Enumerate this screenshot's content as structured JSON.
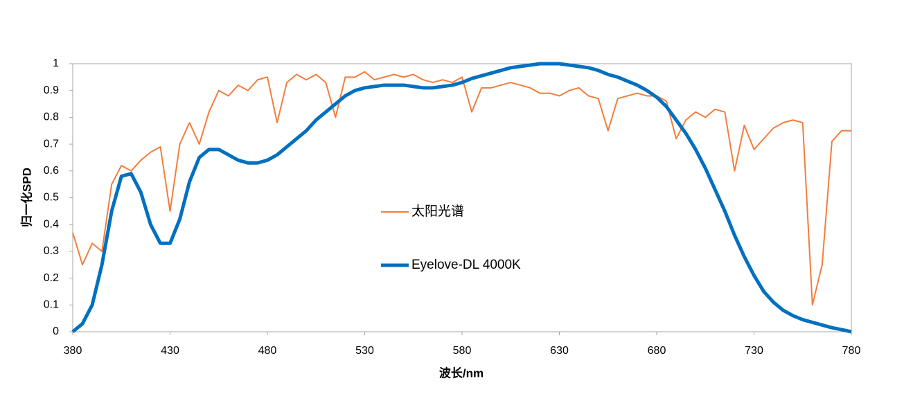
{
  "chart_data": {
    "type": "line",
    "x_label": "波长/nm",
    "y_label": "归一化SPD",
    "x": [
      380,
      385,
      390,
      395,
      400,
      405,
      410,
      415,
      420,
      425,
      430,
      435,
      440,
      445,
      450,
      455,
      460,
      465,
      470,
      475,
      480,
      485,
      490,
      495,
      500,
      505,
      510,
      515,
      520,
      525,
      530,
      535,
      540,
      545,
      550,
      555,
      560,
      565,
      570,
      575,
      580,
      585,
      590,
      595,
      600,
      605,
      610,
      615,
      620,
      625,
      630,
      635,
      640,
      645,
      650,
      655,
      660,
      665,
      670,
      675,
      680,
      685,
      690,
      695,
      700,
      705,
      710,
      715,
      720,
      725,
      730,
      735,
      740,
      745,
      750,
      755,
      760,
      765,
      770,
      775,
      780
    ],
    "series": [
      {
        "name": "太阳光谱",
        "color": "#f47c3c",
        "width": 2,
        "values": [
          0.37,
          0.25,
          0.33,
          0.3,
          0.55,
          0.62,
          0.6,
          0.64,
          0.67,
          0.69,
          0.45,
          0.7,
          0.78,
          0.7,
          0.82,
          0.9,
          0.88,
          0.92,
          0.9,
          0.94,
          0.95,
          0.78,
          0.93,
          0.96,
          0.94,
          0.96,
          0.93,
          0.8,
          0.95,
          0.95,
          0.97,
          0.94,
          0.95,
          0.96,
          0.95,
          0.96,
          0.94,
          0.93,
          0.94,
          0.93,
          0.95,
          0.82,
          0.91,
          0.91,
          0.92,
          0.93,
          0.92,
          0.91,
          0.89,
          0.89,
          0.88,
          0.9,
          0.91,
          0.88,
          0.87,
          0.75,
          0.87,
          0.88,
          0.89,
          0.88,
          0.88,
          0.86,
          0.72,
          0.79,
          0.82,
          0.8,
          0.83,
          0.82,
          0.6,
          0.77,
          0.68,
          0.72,
          0.76,
          0.78,
          0.79,
          0.78,
          0.1,
          0.25,
          0.71,
          0.75,
          0.75
        ]
      },
      {
        "name": "Eyelove-DL 4000K",
        "color": "#0070c0",
        "width": 5,
        "values": [
          0.0,
          0.03,
          0.1,
          0.25,
          0.45,
          0.58,
          0.59,
          0.52,
          0.4,
          0.33,
          0.33,
          0.42,
          0.56,
          0.65,
          0.68,
          0.68,
          0.66,
          0.64,
          0.63,
          0.63,
          0.64,
          0.66,
          0.69,
          0.72,
          0.75,
          0.79,
          0.82,
          0.85,
          0.88,
          0.9,
          0.91,
          0.915,
          0.92,
          0.92,
          0.92,
          0.915,
          0.91,
          0.91,
          0.915,
          0.92,
          0.93,
          0.945,
          0.955,
          0.965,
          0.975,
          0.985,
          0.99,
          0.995,
          1.0,
          1.0,
          1.0,
          0.995,
          0.99,
          0.985,
          0.975,
          0.96,
          0.95,
          0.935,
          0.92,
          0.9,
          0.875,
          0.84,
          0.79,
          0.74,
          0.68,
          0.61,
          0.53,
          0.45,
          0.36,
          0.28,
          0.21,
          0.15,
          0.11,
          0.08,
          0.06,
          0.045,
          0.035,
          0.025,
          0.015,
          0.008,
          0.0
        ]
      }
    ],
    "xlim": [
      380,
      780
    ],
    "xticks": [
      380,
      430,
      480,
      530,
      580,
      630,
      680,
      730,
      780
    ],
    "ylim": [
      0,
      1
    ],
    "yticks": [
      0,
      0.1,
      0.2,
      0.3,
      0.4,
      0.5,
      0.6,
      0.7,
      0.8,
      0.9,
      1
    ],
    "grid": false,
    "legend": "center"
  }
}
